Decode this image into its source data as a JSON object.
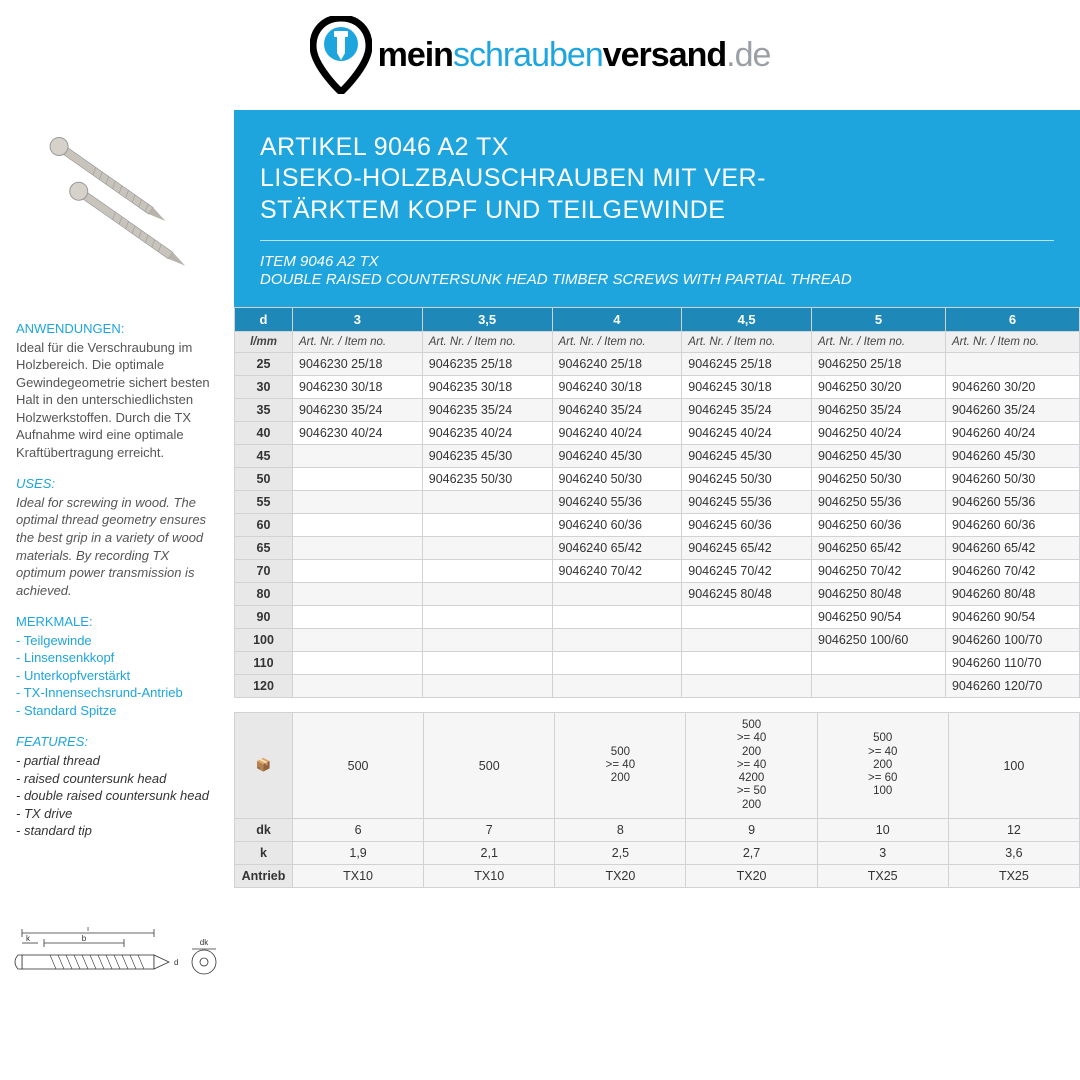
{
  "logo": {
    "mein": "mein",
    "schrauben": "schrauben",
    "versand": "versand",
    "de": ".de"
  },
  "header": {
    "title_l1": "ARTIKEL 9046 A2 TX",
    "title_l2": "LISEKO-HOLZBAUSCHRAUBEN MIT VER-",
    "title_l3": "STÄRKTEM KOPF UND TEILGEWINDE",
    "sub1": "ITEM 9046 A2 TX",
    "sub2": "DOUBLE RAISED COUNTERSUNK HEAD TIMBER SCREWS WITH PARTIAL THREAD"
  },
  "left": {
    "anw_h": "ANWENDUNGEN:",
    "anw_t": "Ideal für die Verschraubung im Holzbereich. Die optimale Gewindegeometrie sichert besten Halt in den unterschiedlichsten Holzwerkstoffen. Durch die TX Aufnahme wird eine optimale Kraftübertragung erreicht.",
    "uses_h": "USES:",
    "uses_t": "Ideal for screwing in wood. The optimal thread geometry ensures the best grip in a variety of wood materials. By recording TX optimum power transmission is achieved.",
    "merk_h": "MERKMALE:",
    "merk": [
      "Teilgewinde",
      "Linsensenkkopf",
      "Unterkopfverstärkt",
      "TX-Innensechsrund-Antrieb",
      "Standard Spitze"
    ],
    "feat_h": "FEATURES:",
    "feat": [
      "partial thread",
      "raised countersunk head",
      "double raised countersunk head",
      "TX drive",
      "standard tip"
    ]
  },
  "table": {
    "head": [
      "d",
      "3",
      "3,5",
      "4",
      "4,5",
      "5",
      "6"
    ],
    "subhead": [
      "l/mm",
      "Art. Nr. / Item no.",
      "Art. Nr. / Item no.",
      "Art. Nr. / Item no.",
      "Art. Nr. / Item no.",
      "Art. Nr. / Item no.",
      "Art. Nr. / Item no."
    ],
    "rows": [
      [
        "25",
        "9046230 25/18",
        "9046235 25/18",
        "9046240 25/18",
        "9046245 25/18",
        "9046250 25/18",
        ""
      ],
      [
        "30",
        "9046230 30/18",
        "9046235 30/18",
        "9046240 30/18",
        "9046245 30/18",
        "9046250 30/20",
        "9046260 30/20"
      ],
      [
        "35",
        "9046230 35/24",
        "9046235 35/24",
        "9046240 35/24",
        "9046245 35/24",
        "9046250 35/24",
        "9046260 35/24"
      ],
      [
        "40",
        "9046230 40/24",
        "9046235 40/24",
        "9046240 40/24",
        "9046245 40/24",
        "9046250 40/24",
        "9046260 40/24"
      ],
      [
        "45",
        "",
        "9046235 45/30",
        "9046240 45/30",
        "9046245 45/30",
        "9046250 45/30",
        "9046260 45/30"
      ],
      [
        "50",
        "",
        "9046235 50/30",
        "9046240 50/30",
        "9046245 50/30",
        "9046250 50/30",
        "9046260 50/30"
      ],
      [
        "55",
        "",
        "",
        "9046240 55/36",
        "9046245 55/36",
        "9046250 55/36",
        "9046260 55/36"
      ],
      [
        "60",
        "",
        "",
        "9046240 60/36",
        "9046245 60/36",
        "9046250 60/36",
        "9046260 60/36"
      ],
      [
        "65",
        "",
        "",
        "9046240 65/42",
        "9046245 65/42",
        "9046250 65/42",
        "9046260 65/42"
      ],
      [
        "70",
        "",
        "",
        "9046240 70/42",
        "9046245 70/42",
        "9046250 70/42",
        "9046260 70/42"
      ],
      [
        "80",
        "",
        "",
        "",
        "9046245 80/48",
        "9046250 80/48",
        "9046260 80/48"
      ],
      [
        "90",
        "",
        "",
        "",
        "",
        "9046250 90/54",
        "9046260 90/54"
      ],
      [
        "100",
        "",
        "",
        "",
        "",
        "9046250 100/60",
        "9046260 100/70"
      ],
      [
        "110",
        "",
        "",
        "",
        "",
        "",
        "9046260 110/70"
      ],
      [
        "120",
        "",
        "",
        "",
        "",
        "",
        "9046260 120/70"
      ]
    ]
  },
  "spec": {
    "rows": [
      {
        "label": "📦",
        "cells": [
          "500",
          "500",
          "500\n>= 40\n200",
          "500\n>= 40\n200\n>= 40\n4200\n>= 50\n200",
          "500\n>= 40\n200\n>= 60\n100",
          "100"
        ]
      },
      {
        "label": "dk",
        "cells": [
          "6",
          "7",
          "8",
          "9",
          "10",
          "12"
        ]
      },
      {
        "label": "k",
        "cells": [
          "1,9",
          "2,1",
          "2,5",
          "2,7",
          "3",
          "3,6"
        ]
      },
      {
        "label": "Antrieb",
        "cells": [
          "TX10",
          "TX10",
          "TX20",
          "TX20",
          "TX25",
          "TX25"
        ]
      }
    ]
  },
  "colors": {
    "blue": "#1ea5de",
    "blue_dark": "#1e88b8",
    "grey": "#e8e8e8",
    "border": "#d0d2d4"
  }
}
